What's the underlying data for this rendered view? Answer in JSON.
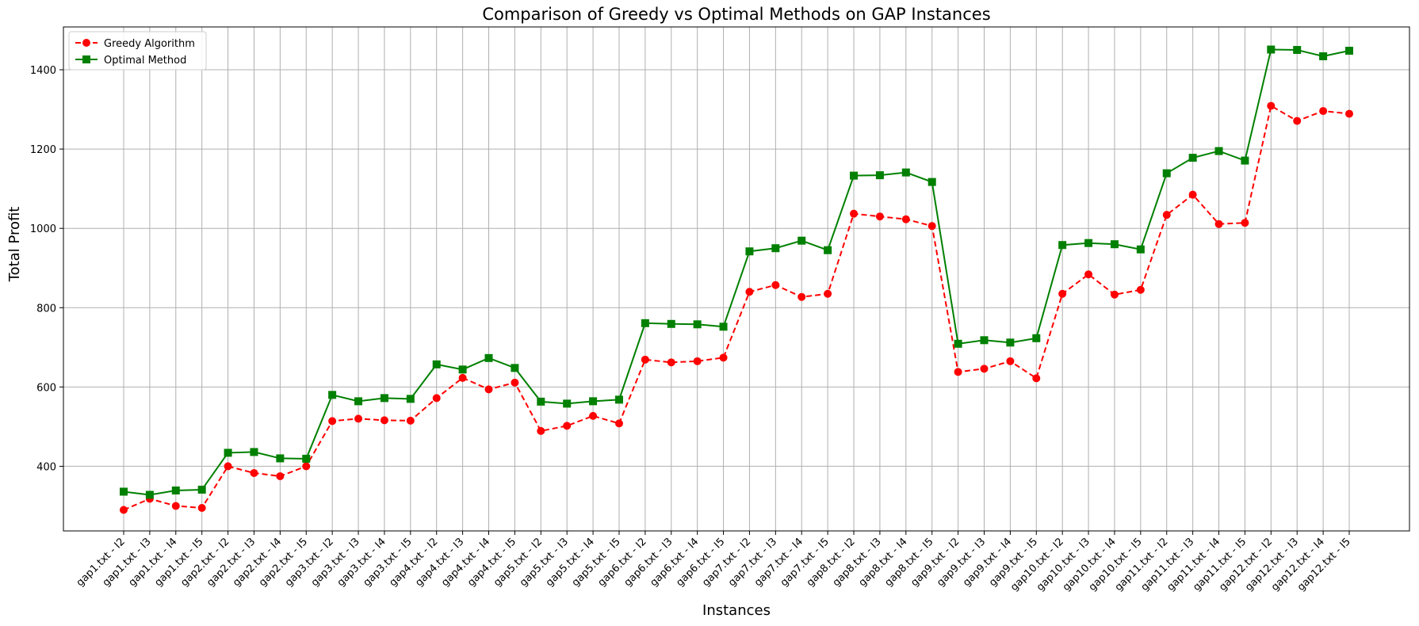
{
  "chart_data": {
    "type": "line",
    "title": "Comparison of Greedy vs Optimal Methods on GAP Instances",
    "xlabel": "Instances",
    "ylabel": "Total Profit",
    "ylim": [
      237,
      1508
    ],
    "yticks": [
      400,
      600,
      800,
      1000,
      1200,
      1400
    ],
    "grid": true,
    "legend_position": "top-left",
    "categories": [
      "gap1.txt - I2",
      "gap1.txt - I3",
      "gap1.txt - I4",
      "gap1.txt - I5",
      "gap2.txt - I2",
      "gap2.txt - I3",
      "gap2.txt - I4",
      "gap2.txt - I5",
      "gap3.txt - I2",
      "gap3.txt - I3",
      "gap3.txt - I4",
      "gap3.txt - I5",
      "gap4.txt - I2",
      "gap4.txt - I3",
      "gap4.txt - I4",
      "gap4.txt - I5",
      "gap5.txt - I2",
      "gap5.txt - I3",
      "gap5.txt - I4",
      "gap5.txt - I5",
      "gap6.txt - I2",
      "gap6.txt - I3",
      "gap6.txt - I4",
      "gap6.txt - I5",
      "gap7.txt - I2",
      "gap7.txt - I3",
      "gap7.txt - I4",
      "gap7.txt - I5",
      "gap8.txt - I2",
      "gap8.txt - I3",
      "gap8.txt - I4",
      "gap8.txt - I5",
      "gap9.txt - I2",
      "gap9.txt - I3",
      "gap9.txt - I4",
      "gap9.txt - I5",
      "gap10.txt - I2",
      "gap10.txt - I3",
      "gap10.txt - I4",
      "gap10.txt - I5",
      "gap11.txt - I2",
      "gap11.txt - I3",
      "gap11.txt - I4",
      "gap11.txt - I5",
      "gap12.txt - I2",
      "gap12.txt - I3",
      "gap12.txt - I4",
      "gap12.txt - I5"
    ],
    "series": [
      {
        "name": "Greedy Algorithm",
        "color": "#ff0000",
        "line_style": "dashed",
        "marker": "circle",
        "values": [
          290,
          318,
          300,
          295,
          400,
          383,
          375,
          400,
          514,
          520,
          516,
          515,
          572,
          623,
          594,
          611,
          489,
          502,
          527,
          508,
          669,
          662,
          665,
          674,
          840,
          857,
          827,
          835,
          1037,
          1030,
          1023,
          1006,
          638,
          646,
          665,
          622,
          835,
          884,
          833,
          845,
          1034,
          1085,
          1011,
          1014,
          1309,
          1271,
          1296,
          1289
        ]
      },
      {
        "name": "Optimal Method",
        "color": "#008000",
        "line_style": "solid",
        "marker": "square",
        "values": [
          336,
          328,
          339,
          341,
          434,
          436,
          420,
          419,
          580,
          564,
          572,
          570,
          657,
          644,
          673,
          648,
          563,
          558,
          564,
          568,
          761,
          759,
          758,
          752,
          942,
          950,
          969,
          945,
          1133,
          1134,
          1141,
          1117,
          709,
          718,
          712,
          723,
          958,
          963,
          960,
          947,
          1139,
          1178,
          1195,
          1171,
          1451,
          1450,
          1434,
          1448
        ]
      }
    ]
  }
}
